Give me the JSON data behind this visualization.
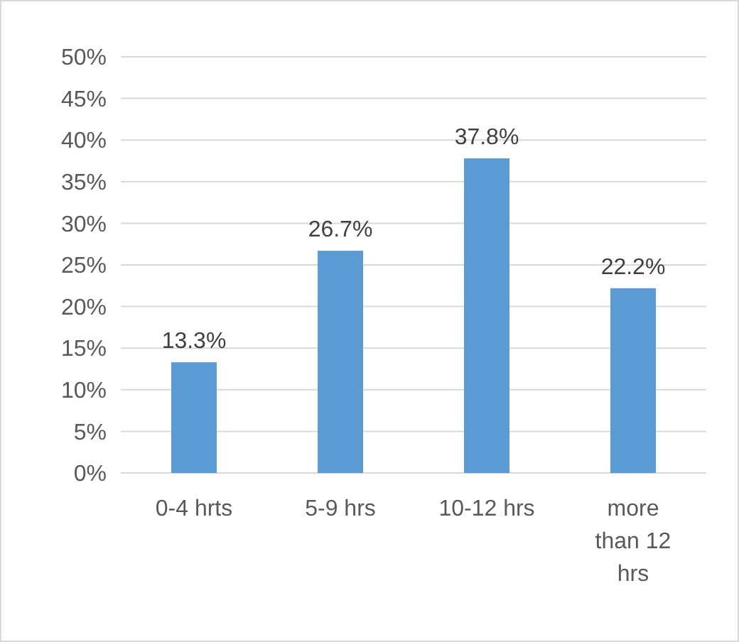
{
  "chart_data": {
    "type": "bar",
    "categories": [
      "0-4 hrts",
      "5-9 hrs",
      "10-12 hrs",
      "more than 12 hrs"
    ],
    "values": [
      13.3,
      26.7,
      37.8,
      22.2
    ],
    "value_labels": [
      "13.3%",
      "26.7%",
      "37.8%",
      "22.2%"
    ],
    "color": "#5b9bd5",
    "ylim": [
      0,
      50
    ],
    "yticks": [
      {
        "value": 0,
        "label": "0%"
      },
      {
        "value": 5,
        "label": "5%"
      },
      {
        "value": 10,
        "label": "10%"
      },
      {
        "value": 15,
        "label": "15%"
      },
      {
        "value": 20,
        "label": "20%"
      },
      {
        "value": 25,
        "label": "25%"
      },
      {
        "value": 30,
        "label": "30%"
      },
      {
        "value": 35,
        "label": "35%"
      },
      {
        "value": 40,
        "label": "40%"
      },
      {
        "value": 45,
        "label": "45%"
      },
      {
        "value": 50,
        "label": "50%"
      }
    ],
    "grid": "y"
  }
}
